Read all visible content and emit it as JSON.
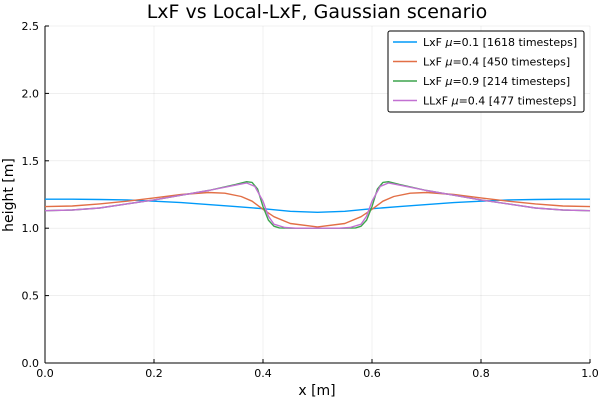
{
  "chart_data": {
    "type": "line",
    "title": "LxF vs Local-LxF, Gaussian scenario",
    "xlabel": "x [m]",
    "ylabel": "height [m]",
    "xlim": [
      0,
      1
    ],
    "ylim": [
      0,
      2.5
    ],
    "xticks": [
      "0.0",
      "0.2",
      "0.4",
      "0.6",
      "0.8",
      "1.0"
    ],
    "yticks": [
      "0.0",
      "0.5",
      "1.0",
      "1.5",
      "2.0",
      "2.5"
    ],
    "grid": true,
    "legend_position": "top-right",
    "series": [
      {
        "name": "LxF μ=0.1 [1618 timesteps]",
        "label_prefix": "LxF ",
        "label_mu": "μ",
        "label_suffix": "=0.1 [1618 timesteps]",
        "color": "#009af9",
        "x": [
          0.0,
          0.05,
          0.1,
          0.15,
          0.2,
          0.25,
          0.3,
          0.35,
          0.4,
          0.45,
          0.5,
          0.55,
          0.6,
          0.65,
          0.7,
          0.75,
          0.8,
          0.85,
          0.9,
          0.95,
          1.0
        ],
        "y": [
          1.215,
          1.215,
          1.213,
          1.21,
          1.2,
          1.19,
          1.175,
          1.16,
          1.145,
          1.125,
          1.118,
          1.125,
          1.145,
          1.16,
          1.175,
          1.19,
          1.2,
          1.21,
          1.213,
          1.215,
          1.215
        ]
      },
      {
        "name": "LxF μ=0.4 [450 timesteps]",
        "label_prefix": "LxF ",
        "label_mu": "μ",
        "label_suffix": "=0.4 [450 timesteps]",
        "color": "#e26f46",
        "x": [
          0.0,
          0.05,
          0.1,
          0.15,
          0.2,
          0.25,
          0.3,
          0.33,
          0.36,
          0.38,
          0.4,
          0.42,
          0.45,
          0.5,
          0.55,
          0.58,
          0.6,
          0.62,
          0.64,
          0.67,
          0.7,
          0.75,
          0.8,
          0.85,
          0.9,
          0.95,
          1.0
        ],
        "y": [
          1.16,
          1.165,
          1.18,
          1.2,
          1.225,
          1.25,
          1.265,
          1.26,
          1.235,
          1.2,
          1.14,
          1.085,
          1.035,
          1.01,
          1.035,
          1.085,
          1.14,
          1.2,
          1.235,
          1.26,
          1.265,
          1.25,
          1.225,
          1.2,
          1.18,
          1.165,
          1.16
        ]
      },
      {
        "name": "LxF μ=0.9 [214 timesteps]",
        "label_prefix": "LxF ",
        "label_mu": "μ",
        "label_suffix": "=0.9 [214 timesteps]",
        "color": "#3da44d",
        "x": [
          0.0,
          0.05,
          0.1,
          0.15,
          0.2,
          0.25,
          0.3,
          0.35,
          0.37,
          0.38,
          0.39,
          0.4,
          0.41,
          0.42,
          0.43,
          0.45,
          0.5,
          0.55,
          0.57,
          0.58,
          0.59,
          0.6,
          0.61,
          0.62,
          0.63,
          0.65,
          0.7,
          0.75,
          0.8,
          0.85,
          0.9,
          0.95,
          1.0
        ],
        "y": [
          1.13,
          1.135,
          1.15,
          1.18,
          1.21,
          1.245,
          1.28,
          1.325,
          1.345,
          1.34,
          1.29,
          1.16,
          1.06,
          1.015,
          1.002,
          1.0,
          1.0,
          1.0,
          1.002,
          1.015,
          1.06,
          1.16,
          1.29,
          1.34,
          1.345,
          1.325,
          1.28,
          1.245,
          1.21,
          1.18,
          1.15,
          1.135,
          1.13
        ]
      },
      {
        "name": "LLxF μ=0.4 [477 timesteps]",
        "label_prefix": "LLxF ",
        "label_mu": "μ",
        "label_suffix": "=0.4 [477 timesteps]",
        "color": "#c271d2",
        "x": [
          0.0,
          0.05,
          0.1,
          0.15,
          0.2,
          0.25,
          0.3,
          0.35,
          0.37,
          0.385,
          0.4,
          0.41,
          0.42,
          0.44,
          0.46,
          0.5,
          0.54,
          0.56,
          0.58,
          0.59,
          0.6,
          0.615,
          0.63,
          0.65,
          0.7,
          0.75,
          0.8,
          0.85,
          0.9,
          0.95,
          1.0
        ],
        "y": [
          1.13,
          1.135,
          1.15,
          1.18,
          1.21,
          1.245,
          1.28,
          1.32,
          1.335,
          1.31,
          1.2,
          1.09,
          1.03,
          1.005,
          1.0,
          1.0,
          1.0,
          1.005,
          1.03,
          1.09,
          1.2,
          1.31,
          1.335,
          1.32,
          1.28,
          1.245,
          1.21,
          1.18,
          1.15,
          1.135,
          1.13
        ]
      }
    ]
  }
}
